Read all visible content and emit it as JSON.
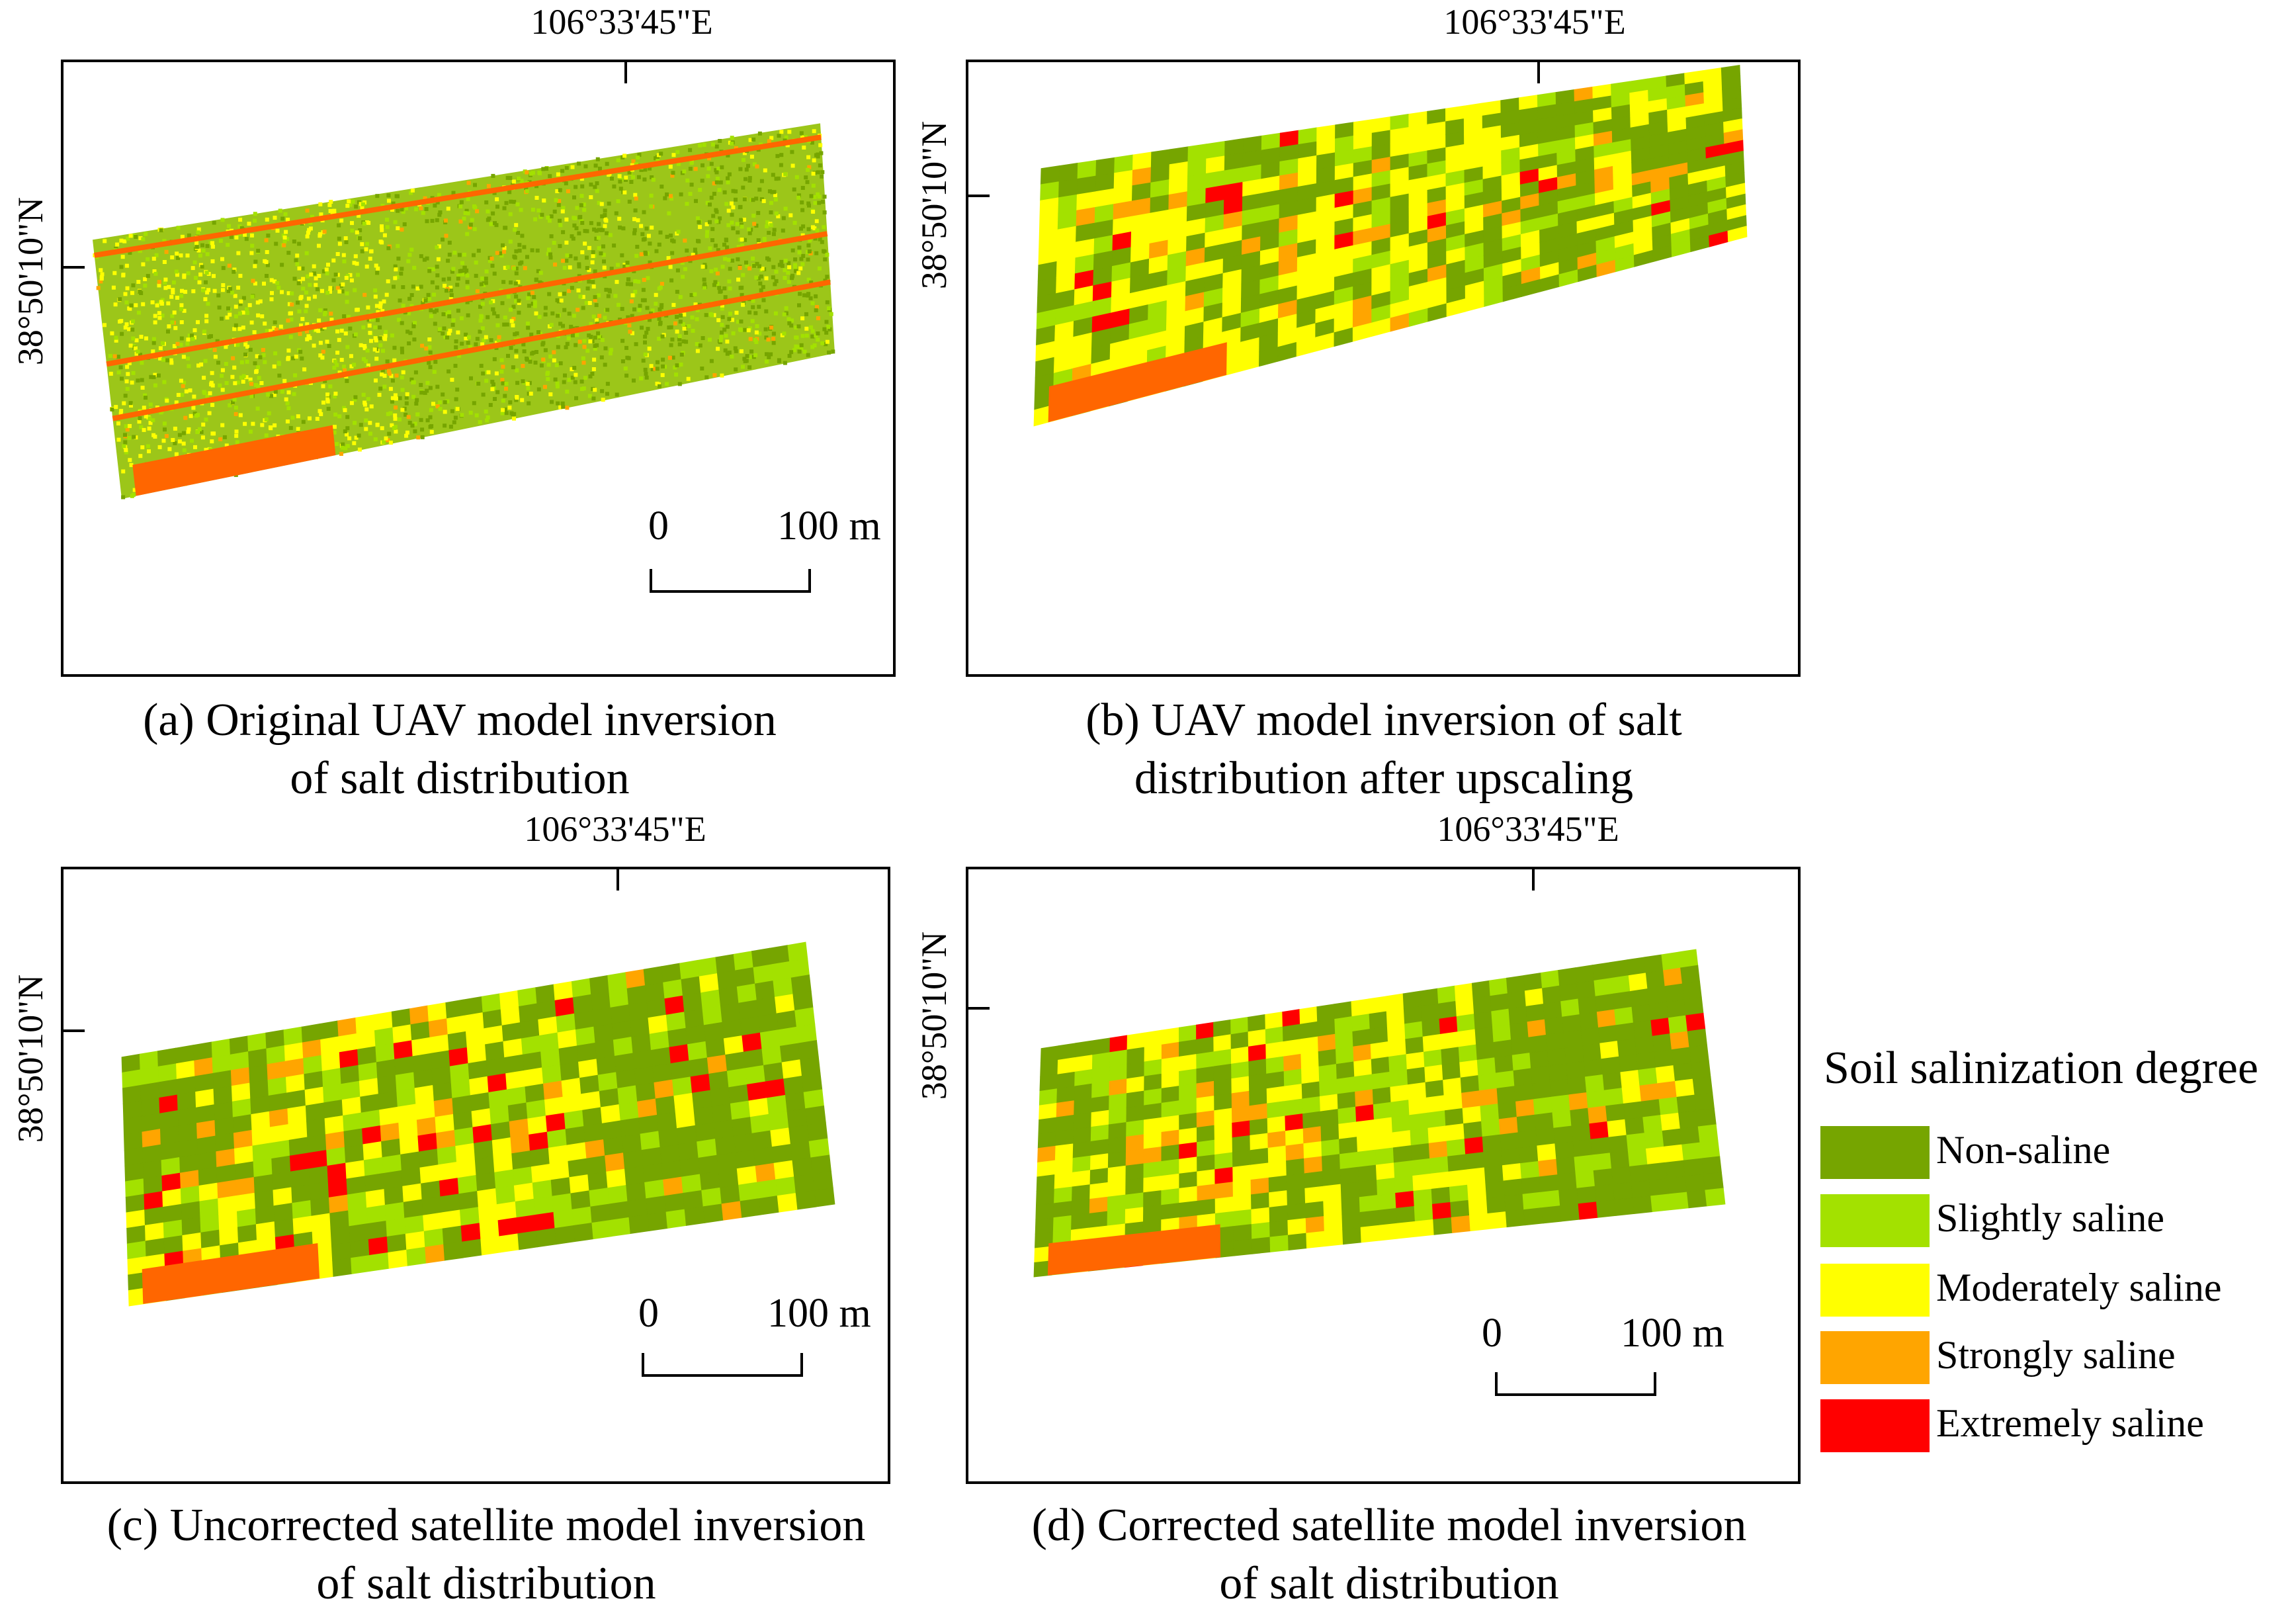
{
  "figure": {
    "panels": [
      {
        "id": "a",
        "lon_label": "106°33'45\"E",
        "lat_label": "38°50'10\"N",
        "caption_line1": "(a) Original UAV model inversion",
        "caption_line2": "of salt distribution",
        "render": "fine",
        "seed": 11,
        "scale": {
          "start": "0",
          "end": "100 m"
        }
      },
      {
        "id": "b",
        "lon_label": "106°33'45\"E",
        "lat_label": "38°50'10\"N",
        "caption_line1": "(b) UAV model inversion of salt",
        "caption_line2": "distribution after upscaling",
        "render": "grid",
        "seed": 23,
        "weights": [
          0.3,
          0.2,
          0.4,
          0.06,
          0.04
        ]
      },
      {
        "id": "c",
        "lon_label": "106°33'45\"E",
        "lat_label": "38°50'10\"N",
        "caption_line1": "(c) Uncorrected satellite model inversion",
        "caption_line2": "of salt distribution",
        "render": "grid",
        "seed": 37,
        "weights": [
          0.42,
          0.22,
          0.26,
          0.06,
          0.04
        ],
        "scale": {
          "start": "0",
          "end": "100 m"
        }
      },
      {
        "id": "d",
        "lon_label": "106°33'45\"E",
        "lat_label": "38°50'10\"N",
        "caption_line1": "(d) Corrected satellite model inversion",
        "caption_line2": "of salt distribution",
        "render": "grid",
        "seed": 53,
        "weights": [
          0.4,
          0.24,
          0.26,
          0.06,
          0.04
        ],
        "scale": {
          "start": "0",
          "end": "100 m"
        }
      }
    ],
    "legend": {
      "title": "Soil salinization degree",
      "items": [
        {
          "label": "Non-saline",
          "color": "#76A500"
        },
        {
          "label": "Slightly saline",
          "color": "#A3E100"
        },
        {
          "label": "Moderately saline",
          "color": "#FFFF00"
        },
        {
          "label": "Strongly saline",
          "color": "#FFA500"
        },
        {
          "label": "Extremely saline",
          "color": "#FF0000"
        }
      ]
    },
    "accent_colors": {
      "bottom_strip": "#FF6600"
    }
  }
}
